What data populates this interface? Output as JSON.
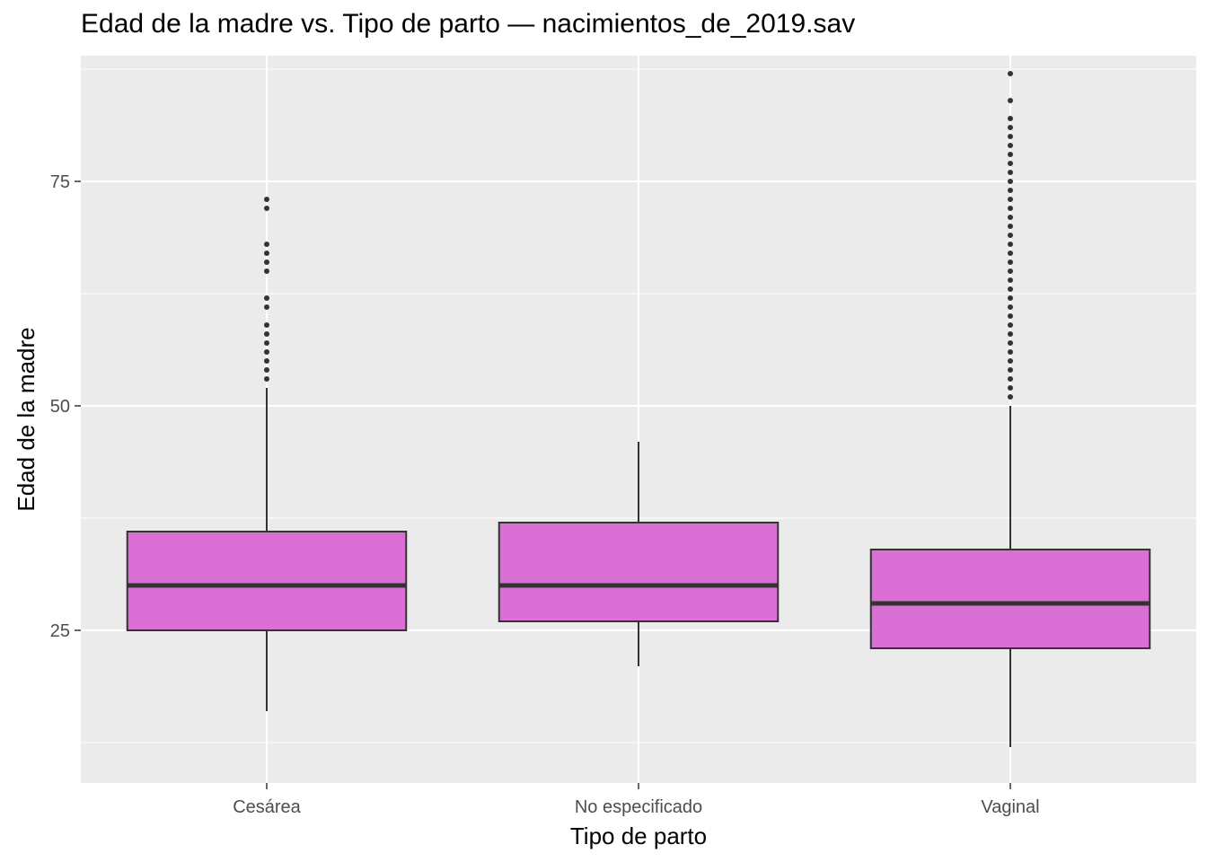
{
  "chart_data": {
    "type": "box",
    "title": "Edad de la madre vs. Tipo de parto — nacimientos_de_2019.sav",
    "xlabel": "Tipo de parto",
    "ylabel": "Edad de la madre",
    "ylim": [
      8,
      89
    ],
    "yticks": [
      25,
      50,
      75
    ],
    "grid": true,
    "colors": {
      "panel": "#ebebeb",
      "grid": "#ffffff",
      "box_fill": "#da70d6",
      "box_stroke": "#333333",
      "axis_text": "#4d4d4d"
    },
    "categories": [
      "Cesárea",
      "No especificado",
      "Vaginal"
    ],
    "boxes": [
      {
        "category": "Cesárea",
        "whisker_low": 16,
        "q1": 25,
        "median": 30,
        "q3": 36,
        "whisker_high": 52,
        "outliers": [
          53,
          54,
          55,
          56,
          57,
          58,
          59,
          61,
          62,
          65,
          66,
          67,
          68,
          72,
          73
        ]
      },
      {
        "category": "No especificado",
        "whisker_low": 21,
        "q1": 26,
        "median": 30,
        "q3": 37,
        "whisker_high": 46,
        "outliers": []
      },
      {
        "category": "Vaginal",
        "whisker_low": 12,
        "q1": 23,
        "median": 28,
        "q3": 34,
        "whisker_high": 50,
        "outliers": [
          51,
          52,
          53,
          54,
          55,
          56,
          57,
          58,
          59,
          60,
          61,
          62,
          63,
          64,
          65,
          66,
          67,
          68,
          69,
          70,
          71,
          72,
          73,
          74,
          75,
          76,
          77,
          78,
          79,
          80,
          81,
          82,
          84,
          87
        ]
      }
    ]
  }
}
